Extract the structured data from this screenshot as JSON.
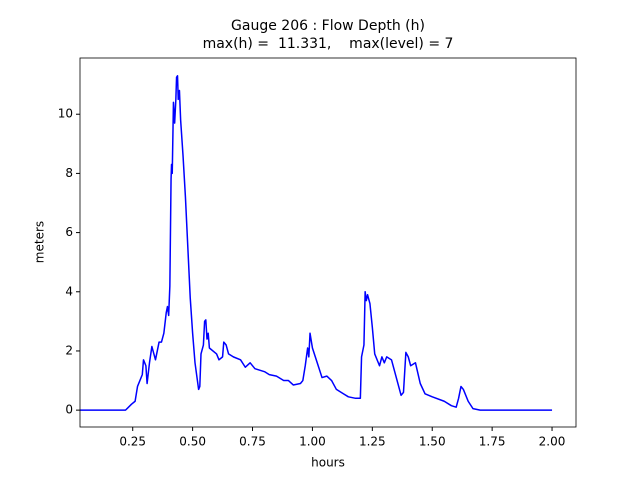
{
  "chart_data": {
    "type": "line",
    "title": "Gauge 206 : Flow Depth (h)",
    "subtitle": "max(h) =  11.331,    max(level) = 7",
    "x_label": "hours",
    "y_label": "meters",
    "x": [
      0.03,
      0.22,
      0.245,
      0.26,
      0.27,
      0.29,
      0.295,
      0.305,
      0.31,
      0.32,
      0.33,
      0.345,
      0.36,
      0.37,
      0.38,
      0.39,
      0.395,
      0.4,
      0.405,
      0.41,
      0.412,
      0.415,
      0.42,
      0.425,
      0.43,
      0.433,
      0.437,
      0.44,
      0.445,
      0.45,
      0.46,
      0.47,
      0.48,
      0.49,
      0.5,
      0.51,
      0.52,
      0.525,
      0.53,
      0.535,
      0.545,
      0.55,
      0.555,
      0.56,
      0.565,
      0.57,
      0.6,
      0.61,
      0.625,
      0.63,
      0.64,
      0.65,
      0.67,
      0.7,
      0.72,
      0.74,
      0.76,
      0.8,
      0.82,
      0.85,
      0.88,
      0.9,
      0.92,
      0.95,
      0.96,
      0.97,
      0.98,
      0.985,
      0.99,
      1.0,
      1.02,
      1.04,
      1.06,
      1.08,
      1.1,
      1.13,
      1.15,
      1.18,
      1.2,
      1.205,
      1.215,
      1.22,
      1.225,
      1.23,
      1.24,
      1.25,
      1.26,
      1.28,
      1.29,
      1.3,
      1.31,
      1.33,
      1.35,
      1.37,
      1.38,
      1.39,
      1.4,
      1.41,
      1.43,
      1.45,
      1.47,
      1.5,
      1.55,
      1.58,
      1.6,
      1.61,
      1.62,
      1.63,
      1.65,
      1.67,
      1.7,
      2.0
    ],
    "series": [
      {
        "name": "h",
        "color": "#0000ff",
        "values": [
          0,
          0,
          0.2,
          0.3,
          0.8,
          1.2,
          1.7,
          1.5,
          0.9,
          1.6,
          2.15,
          1.7,
          2.3,
          2.3,
          2.6,
          3.3,
          3.5,
          3.2,
          4.2,
          7.8,
          8.3,
          8.0,
          10.4,
          9.7,
          10.5,
          11.25,
          11.3,
          10.5,
          10.8,
          9.8,
          8.6,
          7.2,
          5.5,
          3.8,
          2.6,
          1.6,
          1.0,
          0.7,
          0.8,
          1.9,
          2.2,
          3.0,
          3.05,
          2.4,
          2.6,
          2.1,
          1.9,
          1.7,
          1.8,
          2.3,
          2.2,
          1.9,
          1.8,
          1.7,
          1.45,
          1.6,
          1.4,
          1.3,
          1.2,
          1.15,
          1.0,
          1.0,
          0.85,
          0.9,
          1.0,
          1.5,
          2.1,
          1.8,
          2.6,
          2.1,
          1.6,
          1.1,
          1.15,
          1.0,
          0.7,
          0.55,
          0.45,
          0.4,
          0.4,
          1.8,
          2.2,
          4.0,
          3.7,
          3.9,
          3.6,
          2.8,
          1.9,
          1.5,
          1.8,
          1.6,
          1.8,
          1.7,
          1.1,
          0.5,
          0.6,
          1.95,
          1.8,
          1.5,
          1.6,
          0.9,
          0.55,
          0.45,
          0.3,
          0.15,
          0.1,
          0.4,
          0.8,
          0.7,
          0.3,
          0.05,
          0,
          0
        ]
      }
    ],
    "xlim": [
      0.03,
      2.1
    ],
    "ylim": [
      -0.57,
      11.9
    ],
    "xticks": [
      0.25,
      {
        "value": 0.5,
        "label": "0.50"
      },
      0.75,
      {
        "value": 1.0,
        "label": "1.00"
      },
      1.25,
      {
        "value": 1.5,
        "label": "1.50"
      },
      1.75,
      {
        "value": 2.0,
        "label": "2.00"
      }
    ],
    "yticks": [
      0,
      2,
      4,
      6,
      8,
      10
    ],
    "grid": false
  }
}
